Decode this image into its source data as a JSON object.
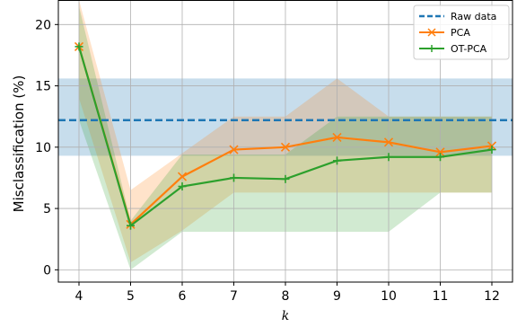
{
  "chart_data": {
    "type": "line",
    "xlabel": "k",
    "ylabel": "Misclassification (%)",
    "x": [
      4,
      5,
      6,
      7,
      8,
      9,
      10,
      11,
      12
    ],
    "xlim": [
      3.6,
      12.4
    ],
    "ylim": [
      -1,
      22
    ],
    "xticks": [
      "4",
      "5",
      "6",
      "7",
      "8",
      "9",
      "10",
      "11",
      "12"
    ],
    "yticks": [
      "0",
      "5",
      "10",
      "15",
      "20"
    ],
    "yticks_values": [
      0,
      5,
      10,
      15,
      20
    ],
    "grid": true,
    "legend_position": "top-right",
    "reference_line": {
      "name": "Raw data",
      "value": 12.2,
      "band_low": 9.3,
      "band_high": 15.6,
      "color": "#1f77b4"
    },
    "series": [
      {
        "name": "PCA",
        "marker": "x",
        "color": "#ff7f0e",
        "values": [
          18.2,
          3.7,
          7.6,
          9.8,
          10.0,
          10.8,
          10.4,
          9.6,
          10.1
        ],
        "band_low": [
          14.0,
          0.6,
          3.2,
          6.3,
          6.3,
          6.3,
          6.3,
          6.3,
          6.3
        ],
        "band_high": [
          22.0,
          6.5,
          9.5,
          12.5,
          12.5,
          15.6,
          12.5,
          12.5,
          12.5
        ]
      },
      {
        "name": "OT-PCA",
        "marker": "+",
        "color": "#2ca02c",
        "values": [
          18.2,
          3.6,
          6.8,
          7.5,
          7.4,
          8.9,
          9.2,
          9.2,
          9.8
        ],
        "band_low": [
          12.2,
          0.0,
          3.1,
          3.1,
          3.1,
          3.1,
          3.1,
          6.3,
          6.3
        ],
        "band_high": [
          21.5,
          4.0,
          9.4,
          9.4,
          9.4,
          12.5,
          12.5,
          12.5,
          12.5
        ]
      }
    ]
  }
}
